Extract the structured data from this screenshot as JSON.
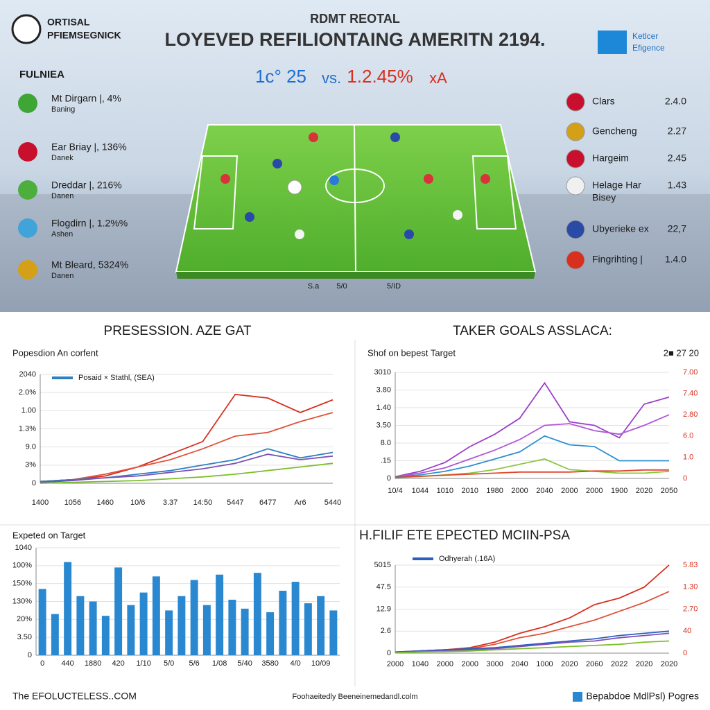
{
  "header": {
    "logo_line1": "ORTISAL",
    "logo_line2": "PFIEMSEGNICK",
    "kicker": "RDMT REOTAL",
    "title": "LOYEVED REFILIONTAING AMERITN 2194.",
    "score_left": "1c° 25",
    "score_vs": "vs.",
    "score_right": "1.2.45%",
    "score_suffix": "xA",
    "badge_line1": "Ketlcer",
    "badge_line2": "Efigence"
  },
  "left_panel": {
    "heading": "FULNIEA",
    "teams": [
      {
        "name": "Mt Dirgarn |, 4%",
        "sub": "Baning"
      },
      {
        "name": "Ear Briay |, 136%",
        "sub": "Danek"
      },
      {
        "name": "Dreddar |, 216%",
        "sub": "Danen"
      },
      {
        "name": "Flogdirn |, 1.2%%",
        "sub": "Ashen"
      },
      {
        "name": "Mt Bleard, 5324%",
        "sub": "Danen"
      }
    ]
  },
  "right_panel": {
    "teams": [
      {
        "name": "Clars",
        "value": "2.4.0"
      },
      {
        "name": "Gencheng",
        "value": "2.27"
      },
      {
        "name": "Hargeim",
        "value": "2.45"
      },
      {
        "name": "Helage Har",
        "sub": "Bisey",
        "value": "1.43"
      },
      {
        "name": "Ubyerieke ex",
        "value": "22,7"
      },
      {
        "name": "Fingrihting |",
        "value": "1.4.0"
      }
    ]
  },
  "pitch": {
    "labels": [
      "S.a",
      "5/0",
      "5/ID"
    ]
  },
  "chart_data": [
    {
      "type": "line",
      "section_title": "PRESESSION. AZE GAT",
      "title": "Popesdion An corfent",
      "categories": [
        "1400",
        "1056",
        "1460",
        "10/6",
        "3.37",
        "14:50",
        "5447",
        "6477",
        "Ar6",
        "5440"
      ],
      "ylim": [
        0,
        6
      ],
      "yticks": [
        0,
        {
          "value": 1,
          "label": "3%"
        },
        {
          "value": 2,
          "label": "9.0"
        },
        {
          "value": 3,
          "label": "1.3%"
        },
        {
          "value": 4,
          "label": "1.00"
        },
        {
          "value": 5,
          "label": "2.0%"
        },
        {
          "value": 6,
          "label": "2040"
        }
      ],
      "grid": true,
      "series": [
        {
          "color": "#d7301f",
          "values": [
            0.1,
            0.2,
            0.4,
            0.9,
            1.6,
            2.3,
            4.9,
            4.7,
            3.9,
            4.6
          ]
        },
        {
          "color": "#e0523a",
          "values": [
            0.1,
            0.2,
            0.5,
            0.9,
            1.3,
            1.9,
            2.6,
            2.8,
            3.4,
            3.9
          ]
        },
        {
          "name": "Posaid × Stathl, (SEA)",
          "color": "#2c7fc0",
          "values": [
            0.1,
            0.2,
            0.3,
            0.5,
            0.7,
            1.0,
            1.3,
            1.9,
            1.4,
            1.7
          ]
        },
        {
          "color": "#7b4fb5",
          "values": [
            0.05,
            0.15,
            0.3,
            0.4,
            0.6,
            0.8,
            1.1,
            1.6,
            1.3,
            1.5
          ]
        },
        {
          "color": "#7cbf2a",
          "values": [
            0,
            0.05,
            0.1,
            0.15,
            0.25,
            0.35,
            0.5,
            0.7,
            0.9,
            1.1
          ]
        }
      ]
    },
    {
      "type": "line",
      "section_title": "TAKER GOALS ASSLACA:",
      "title": "Shof on bepest Target",
      "corner_label": "2■ 27 20",
      "categories": [
        "10/4",
        "1044",
        "1010",
        "2010",
        "1980",
        "2000",
        "2040",
        "2000",
        "2000",
        "1900",
        "2020",
        "2050"
      ],
      "ylim": [
        0,
        6
      ],
      "yticks": [
        0,
        {
          "value": 1,
          "label": ".15"
        },
        {
          "value": 2,
          "label": "8.0"
        },
        {
          "value": 3,
          "label": "3.50"
        },
        {
          "value": 4,
          "label": "1.40"
        },
        {
          "value": 5,
          "label": "3.80"
        },
        {
          "value": 6,
          "label": "3010"
        }
      ],
      "y2lim": [
        0,
        5
      ],
      "y2ticks": [
        0,
        {
          "value": 1,
          "label": "1.0"
        },
        {
          "value": 2,
          "label": "6.0"
        },
        {
          "value": 3,
          "label": "2.80"
        },
        {
          "value": 4,
          "label": "7.40"
        },
        {
          "value": 5,
          "label": "7.00"
        }
      ],
      "grid": true,
      "series": [
        {
          "color": "#9b3fc9",
          "values": [
            0.1,
            0.4,
            0.9,
            1.8,
            2.5,
            3.4,
            5.4,
            3.2,
            3.0,
            2.3,
            4.2,
            4.6
          ]
        },
        {
          "color": "#b057d6",
          "values": [
            0.1,
            0.3,
            0.6,
            1.1,
            1.6,
            2.2,
            3.0,
            3.1,
            2.7,
            2.5,
            3.0,
            3.6
          ]
        },
        {
          "color": "#2e8fd0",
          "values": [
            0.1,
            0.2,
            0.4,
            0.7,
            1.1,
            1.5,
            2.4,
            1.9,
            1.8,
            1.0,
            1.0,
            1.0
          ]
        },
        {
          "color": "#8cc63f",
          "values": [
            0.05,
            0.1,
            0.2,
            0.3,
            0.5,
            0.8,
            1.1,
            0.5,
            0.4,
            0.3,
            0.3,
            0.4
          ]
        },
        {
          "color": "#e2452b",
          "axis": "y2",
          "values": [
            0.05,
            0.1,
            0.15,
            0.2,
            0.25,
            0.3,
            0.3,
            0.3,
            0.35,
            0.35,
            0.4,
            0.4
          ]
        }
      ]
    },
    {
      "type": "bar",
      "title": "Expeted on Target",
      "categories": [
        "0",
        null,
        "440",
        null,
        "1880",
        null,
        "420",
        null,
        "1/10",
        null,
        "5/0",
        null,
        "5/6",
        null,
        "1/08",
        null,
        "5/40",
        null,
        "3580",
        null,
        "4/0",
        null,
        "10/09",
        null
      ],
      "ylim": [
        0,
        6
      ],
      "yticks": [
        0,
        {
          "value": 1,
          "label": "3.50"
        },
        {
          "value": 2,
          "label": "20%"
        },
        {
          "value": 3,
          "label": "130%"
        },
        {
          "value": 4,
          "label": "150%"
        },
        {
          "value": 5,
          "label": "100%"
        },
        {
          "value": 6,
          "label": "1040"
        }
      ],
      "grid": true,
      "color": "#2a88d0",
      "values": [
        3.7,
        2.3,
        5.2,
        3.3,
        3.0,
        2.2,
        4.9,
        2.8,
        3.5,
        4.4,
        2.5,
        3.3,
        4.2,
        2.8,
        4.5,
        3.1,
        2.6,
        4.6,
        2.4,
        3.6,
        4.1,
        2.9,
        3.3,
        2.5
      ]
    },
    {
      "type": "line",
      "section_title": "H.FILIF ETE EPECTED MCIIN-PSA",
      "categories": [
        "2000",
        "1040",
        "2000",
        "2000",
        "3000",
        "2040",
        "1000",
        "2020",
        "2060",
        "2022",
        "2020",
        "2020"
      ],
      "ylim": [
        0,
        4
      ],
      "yticks": [
        0,
        {
          "value": 1,
          "label": "2.6"
        },
        {
          "value": 2,
          "label": "12.9"
        },
        {
          "value": 3,
          "label": "47.5"
        },
        {
          "value": 4,
          "label": "5015"
        }
      ],
      "y2lim": [
        0,
        4
      ],
      "y2ticks": [
        0,
        {
          "value": 1,
          "label": "40"
        },
        {
          "value": 2,
          "label": "2.70"
        },
        {
          "value": 3,
          "label": "1.30"
        },
        {
          "value": 4,
          "label": "5.83"
        }
      ],
      "grid": true,
      "series": [
        {
          "color": "#d7301f",
          "axis": "y2",
          "values": [
            0.05,
            0.1,
            0.15,
            0.25,
            0.5,
            0.9,
            1.2,
            1.6,
            2.2,
            2.5,
            3.0,
            4.0
          ]
        },
        {
          "color": "#e0523a",
          "values": [
            0.05,
            0.1,
            0.15,
            0.2,
            0.4,
            0.7,
            0.9,
            1.2,
            1.5,
            1.9,
            2.3,
            2.8
          ]
        },
        {
          "name": "Odhyerah (.16A)",
          "color": "#2c5fbf",
          "values": [
            0.05,
            0.1,
            0.15,
            0.2,
            0.25,
            0.35,
            0.45,
            0.55,
            0.65,
            0.8,
            0.9,
            1.0
          ]
        },
        {
          "color": "#7b4fb5",
          "values": [
            0.03,
            0.07,
            0.1,
            0.15,
            0.2,
            0.3,
            0.4,
            0.5,
            0.55,
            0.7,
            0.8,
            0.9
          ]
        },
        {
          "color": "#7cbf2a",
          "values": [
            0.02,
            0.05,
            0.07,
            0.1,
            0.15,
            0.2,
            0.25,
            0.3,
            0.35,
            0.4,
            0.5,
            0.55
          ]
        }
      ]
    }
  ],
  "footer": {
    "left": "The EFOLUCTELESS..COM",
    "center": "Foohaeitedly Beeneinemedandl.colm",
    "right": "Bepabdoe MdlPsl) Pogres"
  }
}
